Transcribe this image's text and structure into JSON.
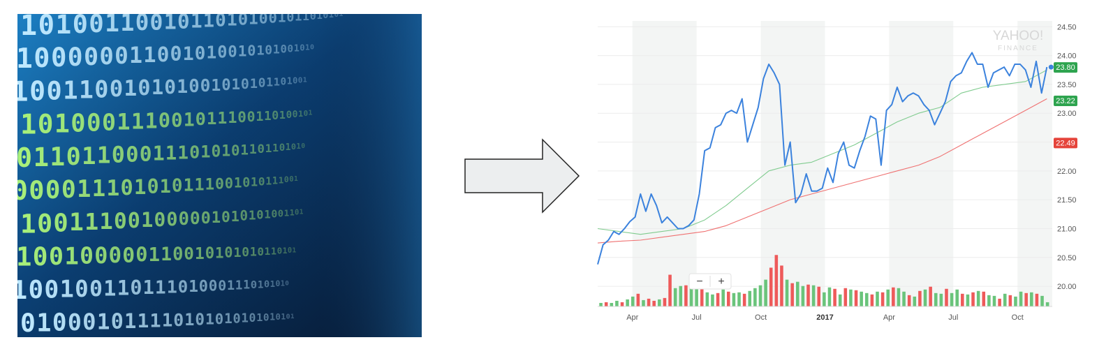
{
  "binary_image": {
    "rows": [
      "10100110010110101001011010101",
      "100000011001010010101001010",
      "100110010101001010101101001",
      "101000111001011100110100101",
      "011011000111010101101101010",
      "000011101010111001010111001",
      "100111001000001010101001101",
      "100100000110010101010110101",
      "100100110111010001110101010",
      "010001011110101010101010101"
    ],
    "colors": {
      "bg_dark": "#0a1a33",
      "bg_light": "#1f6fae",
      "digit_green": "#a8f07a",
      "digit_cyan": "#bfe9ff"
    }
  },
  "arrow": {
    "fill": "#eceeef",
    "stroke": "#222222"
  },
  "chart_data": {
    "type": "line",
    "ylim": [
      19.65,
      24.6
    ],
    "yticks": [
      "24.50",
      "24.00",
      "23.50",
      "23.00",
      "22.50",
      "22.00",
      "21.50",
      "21.00",
      "20.50",
      "20.00"
    ],
    "ytick_values": [
      24.5,
      24.0,
      23.5,
      23.0,
      22.5,
      22.0,
      21.5,
      21.0,
      20.5,
      20.0
    ],
    "xlim": [
      0,
      85
    ],
    "xticks": [
      {
        "label": "Apr",
        "x": 6.5,
        "bold": false
      },
      {
        "label": "Jul",
        "x": 18.5,
        "bold": false
      },
      {
        "label": "Oct",
        "x": 30.5,
        "bold": false
      },
      {
        "label": "2017",
        "x": 42.5,
        "bold": true
      },
      {
        "label": "Apr",
        "x": 54.5,
        "bold": false
      },
      {
        "label": "Jul",
        "x": 66.5,
        "bold": false
      },
      {
        "label": "Oct",
        "x": 78.5,
        "bold": false
      }
    ],
    "shaded_bands": [
      [
        6.5,
        18.5
      ],
      [
        30.5,
        42.5
      ],
      [
        54.5,
        66.5
      ],
      [
        78.5,
        85
      ]
    ],
    "series": [
      {
        "role": "price",
        "color": "#3b82dd",
        "x": [
          0,
          1,
          2,
          3,
          4,
          5,
          6,
          7,
          8,
          9,
          10,
          11,
          12,
          13,
          14,
          15,
          16,
          17,
          18,
          19,
          20,
          21,
          22,
          23,
          24,
          25,
          26,
          27,
          28,
          29,
          30,
          31,
          32,
          33,
          34,
          35,
          36,
          37,
          38,
          39,
          40,
          41,
          42,
          43,
          44,
          45,
          46,
          47,
          48,
          49,
          50,
          51,
          52,
          53,
          54,
          55,
          56,
          57,
          58,
          59,
          60,
          61,
          62,
          63,
          64,
          65,
          66,
          67,
          68,
          69,
          70,
          71,
          72,
          73,
          74,
          75,
          76,
          77,
          78,
          79,
          80,
          81,
          82,
          83,
          84
        ],
        "values": [
          20.38,
          20.72,
          20.8,
          20.95,
          20.9,
          21.0,
          21.12,
          21.2,
          21.6,
          21.3,
          21.6,
          21.4,
          21.1,
          21.2,
          21.1,
          21.0,
          21.0,
          21.05,
          21.15,
          21.6,
          22.35,
          22.4,
          22.75,
          22.8,
          23.0,
          23.05,
          23.0,
          23.25,
          22.5,
          22.8,
          23.1,
          23.6,
          23.85,
          23.7,
          23.5,
          22.1,
          22.5,
          21.45,
          21.6,
          21.95,
          21.65,
          21.65,
          21.7,
          22.05,
          21.8,
          22.3,
          22.5,
          22.1,
          22.05,
          22.35,
          22.6,
          22.95,
          22.9,
          22.1,
          23.05,
          23.15,
          23.45,
          23.2,
          23.3,
          23.35,
          23.3,
          23.15,
          23.05,
          22.8,
          23.0,
          23.2,
          23.55,
          23.65,
          23.7,
          23.9,
          24.05,
          23.85,
          23.85,
          23.45,
          23.7,
          23.75,
          23.8,
          23.65,
          23.85,
          23.85,
          23.75,
          23.45,
          23.9,
          23.35,
          23.8
        ]
      },
      {
        "role": "moving-average-short",
        "color": "#7fcb8e",
        "x": [
          0,
          4,
          8,
          12,
          16,
          20,
          24,
          28,
          32,
          36,
          40,
          44,
          48,
          52,
          56,
          60,
          64,
          68,
          72,
          76,
          80,
          84
        ],
        "values": [
          21.0,
          20.95,
          20.9,
          20.95,
          21.0,
          21.15,
          21.4,
          21.7,
          22.0,
          22.1,
          22.15,
          22.3,
          22.45,
          22.65,
          22.85,
          23.0,
          23.1,
          23.35,
          23.45,
          23.5,
          23.55,
          23.75
        ]
      },
      {
        "role": "moving-average-long",
        "color": "#ef7171",
        "x": [
          0,
          4,
          8,
          12,
          16,
          20,
          24,
          28,
          32,
          36,
          40,
          44,
          48,
          52,
          56,
          60,
          64,
          68,
          72,
          76,
          80,
          84
        ],
        "values": [
          20.75,
          20.78,
          20.8,
          20.85,
          20.9,
          20.95,
          21.05,
          21.2,
          21.35,
          21.5,
          21.6,
          21.7,
          21.8,
          21.9,
          22.0,
          22.1,
          22.25,
          22.45,
          22.65,
          22.85,
          23.05,
          23.25
        ]
      }
    ],
    "price_labels": [
      {
        "text": "23.80",
        "color": "#2ea44f",
        "value": 23.8
      },
      {
        "text": "23.22",
        "color": "#2ea44f",
        "value": 23.22
      },
      {
        "text": "22.49",
        "color": "#e5443b",
        "value": 22.49
      }
    ],
    "volume": {
      "max": 100,
      "up_color": "#6ac47b",
      "down_color": "#ee5a5a",
      "values": [
        5,
        6,
        5,
        8,
        6,
        10,
        14,
        18,
        9,
        11,
        8,
        10,
        12,
        45,
        26,
        29,
        30,
        34,
        29,
        33,
        20,
        17,
        19,
        24,
        21,
        19,
        20,
        18,
        22,
        26,
        30,
        38,
        55,
        73,
        58,
        38,
        33,
        35,
        29,
        31,
        30,
        28,
        20,
        27,
        25,
        17,
        26,
        24,
        23,
        21,
        19,
        17,
        21,
        20,
        24,
        27,
        26,
        21,
        16,
        14,
        22,
        24,
        28,
        19,
        18,
        25,
        19,
        24,
        18,
        17,
        20,
        22,
        21,
        16,
        15,
        11,
        18,
        16,
        14,
        21,
        19,
        20,
        18,
        15,
        6
      ],
      "up": [
        1,
        0,
        1,
        1,
        0,
        1,
        1,
        0,
        1,
        0,
        0,
        1,
        0,
        0,
        1,
        1,
        0,
        1,
        1,
        0,
        1,
        1,
        0,
        1,
        0,
        1,
        1,
        0,
        1,
        1,
        1,
        1,
        0,
        0,
        0,
        1,
        0,
        1,
        1,
        0,
        1,
        0,
        1,
        1,
        0,
        1,
        0,
        1,
        0,
        1,
        1,
        0,
        1,
        0,
        1,
        0,
        1,
        1,
        0,
        1,
        0,
        1,
        0,
        1,
        1,
        0,
        1,
        1,
        0,
        1,
        0,
        1,
        0,
        1,
        1,
        0,
        1,
        0,
        1,
        1,
        0,
        1,
        0,
        1,
        1
      ]
    },
    "watermark": {
      "line1": "YAHOO!",
      "line2": "FINANCE"
    },
    "zoom": {
      "minus": "−",
      "plus": "+"
    }
  }
}
